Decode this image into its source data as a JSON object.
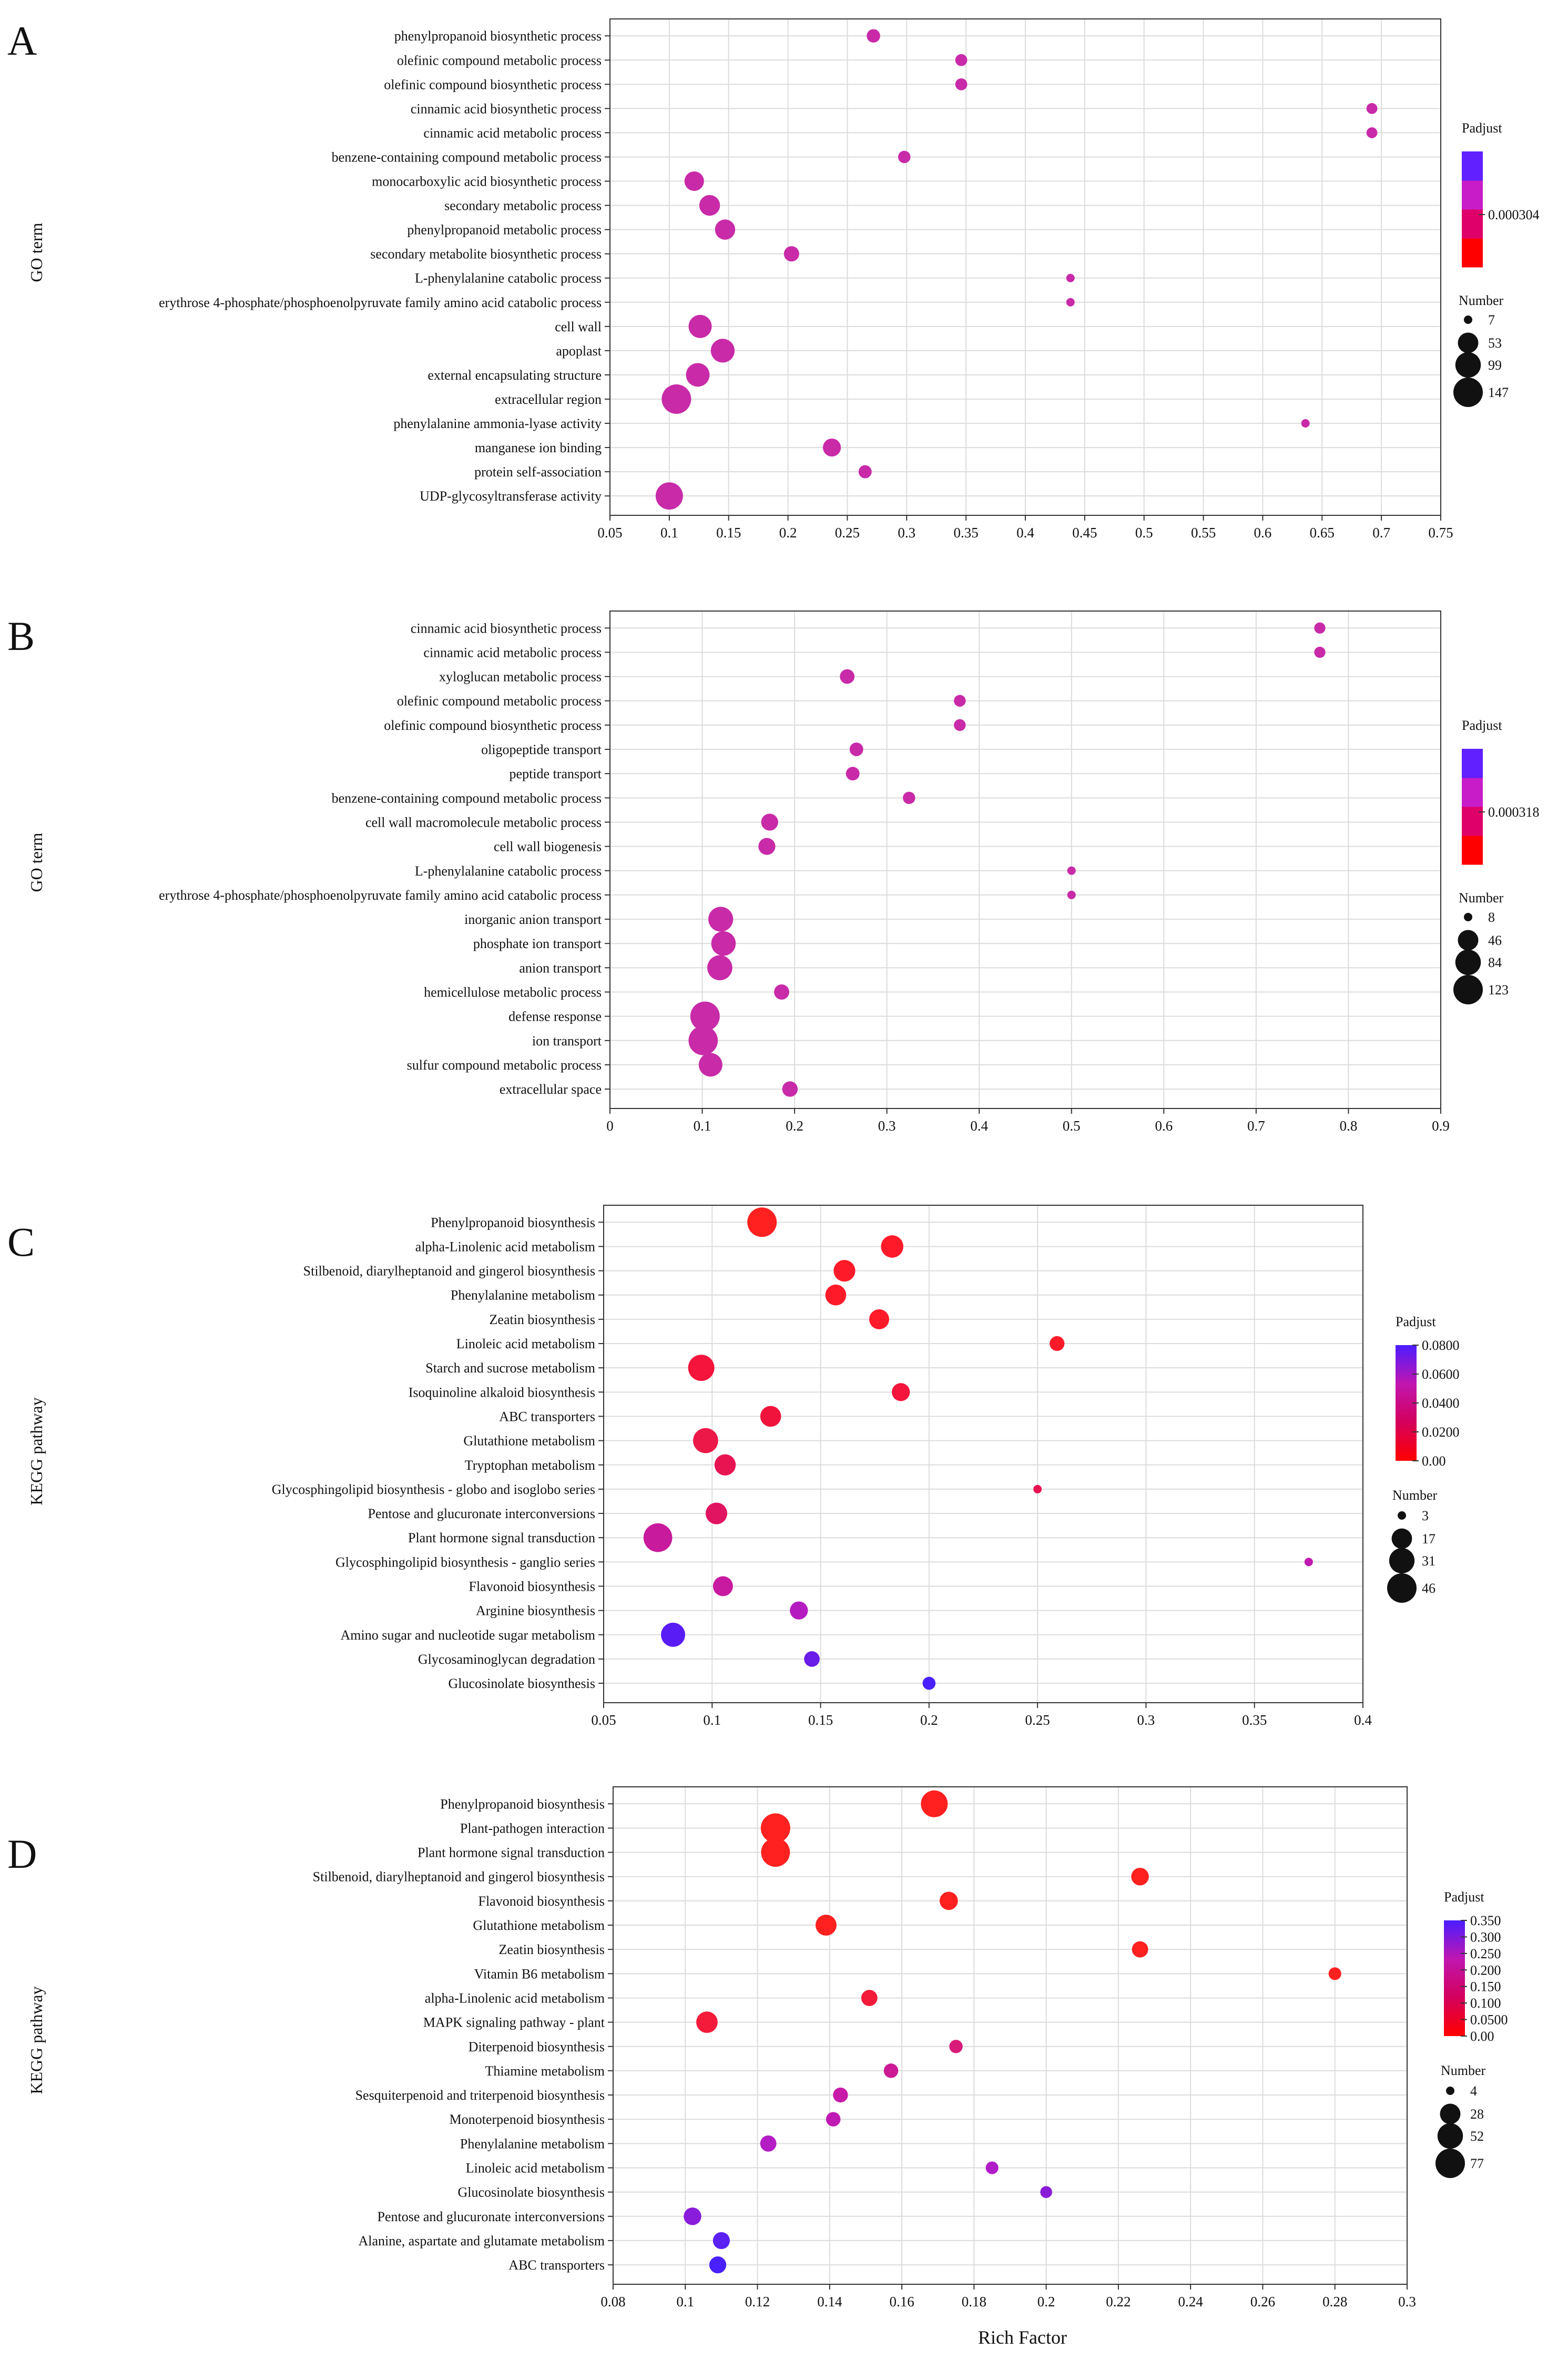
{
  "figure": {
    "x_label": "Rich Factor"
  },
  "chart_data": [
    {
      "type": "scatter",
      "panel_label": "A",
      "ylabel": "GO term",
      "xlabel": "",
      "xlim": [
        0.05,
        0.75
      ],
      "x_ticks": [
        "0.05",
        "0.1",
        "0.15",
        "0.2",
        "0.25",
        "0.3",
        "0.35",
        "0.4",
        "0.45",
        "0.5",
        "0.55",
        "0.6",
        "0.65",
        "0.7",
        "0.75"
      ],
      "grid": true,
      "legend_placement": "right",
      "color_legend": {
        "title": "Padjust",
        "scale": "discrete",
        "colors": [
          "#ff0000",
          "#e0006a",
          "#c81cc8",
          "#6020ff"
        ],
        "tick_labels": [
          "0.000304"
        ]
      },
      "size_legend": {
        "title": "Number",
        "values": [
          "7",
          "53",
          "99",
          "147"
        ],
        "range": [
          7,
          147
        ]
      },
      "points": [
        {
          "term": "phenylpropanoid biosynthetic process",
          "x": 0.272,
          "size": 15,
          "color": "#c82aa8"
        },
        {
          "term": "olefinic compound metabolic process",
          "x": 0.346,
          "size": 11,
          "color": "#c82aa8"
        },
        {
          "term": "olefinic compound biosynthetic process",
          "x": 0.346,
          "size": 11,
          "color": "#c82aa8"
        },
        {
          "term": "cinnamic acid biosynthetic process",
          "x": 0.692,
          "size": 9,
          "color": "#c82aa8"
        },
        {
          "term": "cinnamic acid metabolic process",
          "x": 0.692,
          "size": 9,
          "color": "#c82aa8"
        },
        {
          "term": "benzene-containing compound metabolic process",
          "x": 0.298,
          "size": 12,
          "color": "#c82aa8"
        },
        {
          "term": "monocarboxylic acid biosynthetic process",
          "x": 0.121,
          "size": 46,
          "color": "#c82aa8"
        },
        {
          "term": "secondary metabolic process",
          "x": 0.134,
          "size": 55,
          "color": "#c82aa8"
        },
        {
          "term": "phenylpropanoid metabolic process",
          "x": 0.147,
          "size": 51,
          "color": "#c82aa8"
        },
        {
          "term": "secondary metabolite biosynthetic process",
          "x": 0.203,
          "size": 22,
          "color": "#c82aa8"
        },
        {
          "term": "L-phenylalanine catabolic process",
          "x": 0.438,
          "size": 7,
          "color": "#c82aa8"
        },
        {
          "term": "erythrose 4-phosphate/phosphoenolpyruvate family amino acid catabolic process",
          "x": 0.438,
          "size": 7,
          "color": "#c82aa8"
        },
        {
          "term": "cell wall",
          "x": 0.126,
          "size": 76,
          "color": "#c82aa8"
        },
        {
          "term": "apoplast",
          "x": 0.145,
          "size": 82,
          "color": "#c82aa8"
        },
        {
          "term": "external encapsulating structure",
          "x": 0.124,
          "size": 80,
          "color": "#c82aa8"
        },
        {
          "term": "extracellular region",
          "x": 0.106,
          "size": 147,
          "color": "#c82aa8"
        },
        {
          "term": "phenylalanine ammonia-lyase activity",
          "x": 0.636,
          "size": 7,
          "color": "#c82aa8"
        },
        {
          "term": "manganese ion binding",
          "x": 0.237,
          "size": 36,
          "color": "#c82aa8"
        },
        {
          "term": "protein self-association",
          "x": 0.265,
          "size": 14,
          "color": "#c82aa8"
        },
        {
          "term": "UDP-glycosyltransferase activity",
          "x": 0.1,
          "size": 120,
          "color": "#c82aa8"
        }
      ]
    },
    {
      "type": "scatter",
      "panel_label": "B",
      "ylabel": "GO term",
      "xlabel": "",
      "xlim": [
        0,
        0.9
      ],
      "x_ticks": [
        "0",
        "0.1",
        "0.2",
        "0.3",
        "0.4",
        "0.5",
        "0.6",
        "0.7",
        "0.8",
        "0.9"
      ],
      "grid": true,
      "legend_placement": "right",
      "color_legend": {
        "title": "Padjust",
        "scale": "discrete",
        "colors": [
          "#ff0000",
          "#e0006a",
          "#c81cc8",
          "#6020ff"
        ],
        "tick_labels": [
          "0.000318"
        ]
      },
      "size_legend": {
        "title": "Number",
        "values": [
          "8",
          "46",
          "84",
          "123"
        ],
        "range": [
          8,
          123
        ]
      },
      "points": [
        {
          "term": "cinnamic acid biosynthetic process",
          "x": 0.769,
          "size": 10,
          "color": "#c82aa8"
        },
        {
          "term": "cinnamic acid metabolic process",
          "x": 0.769,
          "size": 10,
          "color": "#c82aa8"
        },
        {
          "term": "xyloglucan metabolic process",
          "x": 0.257,
          "size": 18,
          "color": "#c82aa8"
        },
        {
          "term": "olefinic compound metabolic process",
          "x": 0.379,
          "size": 11,
          "color": "#c82aa8"
        },
        {
          "term": "olefinic compound biosynthetic process",
          "x": 0.379,
          "size": 11,
          "color": "#c82aa8"
        },
        {
          "term": "oligopeptide transport",
          "x": 0.267,
          "size": 15,
          "color": "#c82aa8"
        },
        {
          "term": "peptide transport",
          "x": 0.263,
          "size": 15,
          "color": "#c82aa8"
        },
        {
          "term": "benzene-containing compound metabolic process",
          "x": 0.324,
          "size": 12,
          "color": "#c82aa8"
        },
        {
          "term": "cell wall macromolecule metabolic process",
          "x": 0.173,
          "size": 27,
          "color": "#c82aa8"
        },
        {
          "term": "cell wall biogenesis",
          "x": 0.17,
          "size": 27,
          "color": "#c82aa8"
        },
        {
          "term": "L-phenylalanine catabolic process",
          "x": 0.5,
          "size": 8,
          "color": "#c82aa8"
        },
        {
          "term": "erythrose 4-phosphate/phosphoenolpyruvate family amino acid catabolic process",
          "x": 0.5,
          "size": 8,
          "color": "#c82aa8"
        },
        {
          "term": "inorganic anion transport",
          "x": 0.12,
          "size": 78,
          "color": "#c82aa8"
        },
        {
          "term": "phosphate ion transport",
          "x": 0.123,
          "size": 75,
          "color": "#c82aa8"
        },
        {
          "term": "anion transport",
          "x": 0.119,
          "size": 80,
          "color": "#c82aa8"
        },
        {
          "term": "hemicellulose metabolic process",
          "x": 0.186,
          "size": 20,
          "color": "#c82aa8"
        },
        {
          "term": "defense response",
          "x": 0.103,
          "size": 123,
          "color": "#c82aa8"
        },
        {
          "term": "ion transport",
          "x": 0.101,
          "size": 121,
          "color": "#c82aa8"
        },
        {
          "term": "sulfur compound metabolic process",
          "x": 0.109,
          "size": 68,
          "color": "#c82aa8"
        },
        {
          "term": "extracellular space",
          "x": 0.195,
          "size": 21,
          "color": "#c82aa8"
        }
      ]
    },
    {
      "type": "scatter",
      "panel_label": "C",
      "ylabel": "KEGG pathway",
      "xlabel": "",
      "xlim": [
        0.05,
        0.4
      ],
      "x_ticks": [
        "0.05",
        "0.1",
        "0.15",
        "0.2",
        "0.25",
        "0.3",
        "0.35",
        "0.4"
      ],
      "grid": true,
      "legend_placement": "right",
      "color_legend": {
        "title": "Padjust",
        "scale": "continuous",
        "range": [
          0,
          0.08
        ],
        "stops": [
          "#ff0000",
          "#d4005c",
          "#c016b0",
          "#4b1cff"
        ],
        "tick_labels": [
          "0.0800",
          "0.0600",
          "0.0400",
          "0.0200",
          "0.00"
        ]
      },
      "size_legend": {
        "title": "Number",
        "values": [
          "3",
          "17",
          "31",
          "46"
        ],
        "range": [
          3,
          46
        ]
      },
      "points": [
        {
          "term": "Phenylpropanoid biosynthesis",
          "x": 0.123,
          "size": 46,
          "color": "#ff2020"
        },
        {
          "term": "alpha-Linolenic acid metabolism",
          "x": 0.183,
          "size": 22,
          "color": "#ff1a2a"
        },
        {
          "term": "Stilbenoid, diarylheptanoid and gingerol biosynthesis",
          "x": 0.161,
          "size": 20,
          "color": "#ff1a2a"
        },
        {
          "term": "Phenylalanine metabolism",
          "x": 0.157,
          "size": 18,
          "color": "#ff1a2a"
        },
        {
          "term": "Zeatin biosynthesis",
          "x": 0.177,
          "size": 16,
          "color": "#ff1a2a"
        },
        {
          "term": "Linoleic acid metabolism",
          "x": 0.259,
          "size": 7,
          "color": "#ff1a2a"
        },
        {
          "term": "Starch and sucrose metabolism",
          "x": 0.095,
          "size": 34,
          "color": "#f4143c"
        },
        {
          "term": "Isoquinoline alkaloid biosynthesis",
          "x": 0.187,
          "size": 12,
          "color": "#f4143c"
        },
        {
          "term": "ABC transporters",
          "x": 0.127,
          "size": 18,
          "color": "#f0143c"
        },
        {
          "term": "Glutathione metabolism",
          "x": 0.097,
          "size": 30,
          "color": "#ec1848"
        },
        {
          "term": "Tryptophan metabolism",
          "x": 0.106,
          "size": 19,
          "color": "#e81452"
        },
        {
          "term": "Glycosphingolipid biosynthesis - globo and isoglobo series",
          "x": 0.25,
          "size": 3,
          "color": "#e81452"
        },
        {
          "term": "Pentose and glucuronate interconversions",
          "x": 0.102,
          "size": 20,
          "color": "#e01460"
        },
        {
          "term": "Plant hormone signal transduction",
          "x": 0.075,
          "size": 43,
          "color": "#c81a9c"
        },
        {
          "term": "Glycosphingolipid biosynthesis - ganglio series",
          "x": 0.375,
          "size": 3,
          "color": "#c01ab0"
        },
        {
          "term": "Flavonoid biosynthesis",
          "x": 0.105,
          "size": 16,
          "color": "#c81aa0"
        },
        {
          "term": "Arginine biosynthesis",
          "x": 0.14,
          "size": 12,
          "color": "#b41cc0"
        },
        {
          "term": "Amino sugar and nucleotide sugar metabolism",
          "x": 0.082,
          "size": 27,
          "color": "#5a1cf4"
        },
        {
          "term": "Glycosaminoglycan degradation",
          "x": 0.146,
          "size": 8,
          "color": "#6a1ce8"
        },
        {
          "term": "Glucosinolate biosynthesis",
          "x": 0.2,
          "size": 5,
          "color": "#4a20ff"
        }
      ]
    },
    {
      "type": "scatter",
      "panel_label": "D",
      "ylabel": "KEGG pathway",
      "xlabel": "Rich Factor",
      "xlim": [
        0.08,
        0.3
      ],
      "x_ticks": [
        "0.08",
        "0.1",
        "0.12",
        "0.14",
        "0.16",
        "0.18",
        "0.2",
        "0.22",
        "0.24",
        "0.26",
        "0.28",
        "0.3"
      ],
      "grid": true,
      "legend_placement": "right",
      "color_legend": {
        "title": "Padjust",
        "scale": "continuous",
        "range": [
          0,
          0.35
        ],
        "stops": [
          "#ff0000",
          "#d4005c",
          "#c016b0",
          "#4b1cff"
        ],
        "tick_labels": [
          "0.350",
          "0.300",
          "0.250",
          "0.200",
          "0.150",
          "0.100",
          "0.0500",
          "0.00"
        ]
      },
      "size_legend": {
        "title": "Number",
        "values": [
          "4",
          "28",
          "52",
          "77"
        ],
        "range": [
          4,
          77
        ]
      },
      "points": [
        {
          "term": "Phenylpropanoid biosynthesis",
          "x": 0.169,
          "size": 60,
          "color": "#ff2020"
        },
        {
          "term": "Plant-pathogen interaction",
          "x": 0.125,
          "size": 77,
          "color": "#ff2020"
        },
        {
          "term": "Plant hormone signal transduction",
          "x": 0.125,
          "size": 73,
          "color": "#ff2020"
        },
        {
          "term": "Stilbenoid, diarylheptanoid and gingerol biosynthesis",
          "x": 0.226,
          "size": 18,
          "color": "#ff2020"
        },
        {
          "term": "Flavonoid biosynthesis",
          "x": 0.173,
          "size": 20,
          "color": "#ff2020"
        },
        {
          "term": "Glutathione metabolism",
          "x": 0.139,
          "size": 30,
          "color": "#ff2020"
        },
        {
          "term": "Zeatin biosynthesis",
          "x": 0.226,
          "size": 14,
          "color": "#ff2020"
        },
        {
          "term": "Vitamin B6 metabolism",
          "x": 0.28,
          "size": 7,
          "color": "#ff2020"
        },
        {
          "term": "alpha-Linolenic acid metabolism",
          "x": 0.151,
          "size": 14,
          "color": "#f41a3a"
        },
        {
          "term": "MAPK signaling pathway - plant",
          "x": 0.106,
          "size": 32,
          "color": "#f41a3a"
        },
        {
          "term": "Diterpenoid biosynthesis",
          "x": 0.175,
          "size": 8,
          "color": "#d81a78"
        },
        {
          "term": "Thiamine metabolism",
          "x": 0.157,
          "size": 10,
          "color": "#cc1a94"
        },
        {
          "term": "Sesquiterpenoid and triterpenoid biosynthesis",
          "x": 0.143,
          "size": 11,
          "color": "#c81aa8"
        },
        {
          "term": "Monoterpenoid biosynthesis",
          "x": 0.141,
          "size": 10,
          "color": "#c01ab4"
        },
        {
          "term": "Phenylalanine metabolism",
          "x": 0.123,
          "size": 14,
          "color": "#b41cc4"
        },
        {
          "term": "Linoleic acid metabolism",
          "x": 0.185,
          "size": 7,
          "color": "#b01cc8"
        },
        {
          "term": "Glucosinolate biosynthesis",
          "x": 0.2,
          "size": 6,
          "color": "#8a1cd8"
        },
        {
          "term": "Pentose and glucuronate interconversions",
          "x": 0.102,
          "size": 18,
          "color": "#8a1cdc"
        },
        {
          "term": "Alanine, aspartate and glutamate metabolism",
          "x": 0.11,
          "size": 16,
          "color": "#5a20f4"
        },
        {
          "term": "ABC transporters",
          "x": 0.109,
          "size": 16,
          "color": "#4a20ff"
        }
      ]
    }
  ]
}
